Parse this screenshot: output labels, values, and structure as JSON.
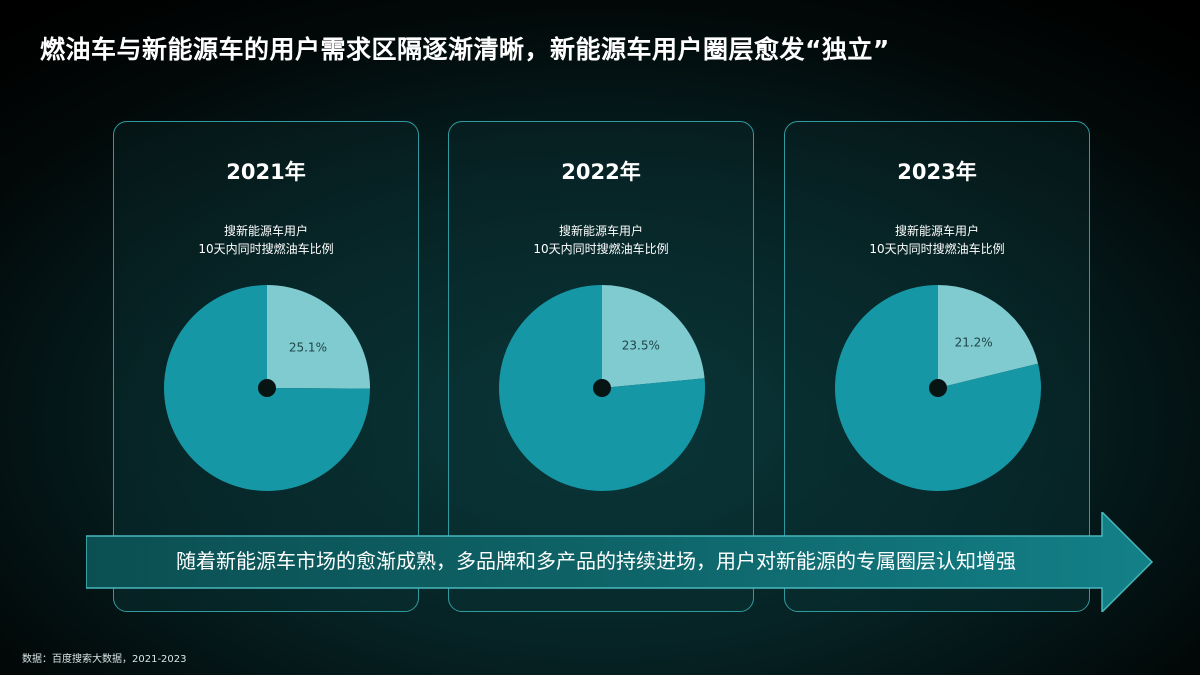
{
  "title": "燃油车与新能源车的用户需求区隔逐渐清晰，新能源车用户圈层愈发“独立”",
  "subtitle_line1": "搜新能源车用户",
  "subtitle_line2": "10天内同时搜燃油车比例",
  "banner": "随着新能源车市场的愈渐成熟，多品牌和多产品的持续进场，用户对新能源的专属圈层认知增强",
  "source": "数据：百度搜索大数据，2021-2023",
  "colors": {
    "slice_highlight": "#7fcbcf",
    "slice_rest": "#1697a5",
    "center_dot": "#061414"
  },
  "chart_data": [
    {
      "type": "pie",
      "title": "2021年",
      "slices": [
        {
          "value": 25.1,
          "label": "25.1%"
        },
        {
          "value": 74.9
        }
      ]
    },
    {
      "type": "pie",
      "title": "2022年",
      "slices": [
        {
          "value": 23.5,
          "label": "23.5%"
        },
        {
          "value": 76.5
        }
      ]
    },
    {
      "type": "pie",
      "title": "2023年",
      "slices": [
        {
          "value": 21.2,
          "label": "21.2%"
        },
        {
          "value": 78.8
        }
      ]
    }
  ]
}
